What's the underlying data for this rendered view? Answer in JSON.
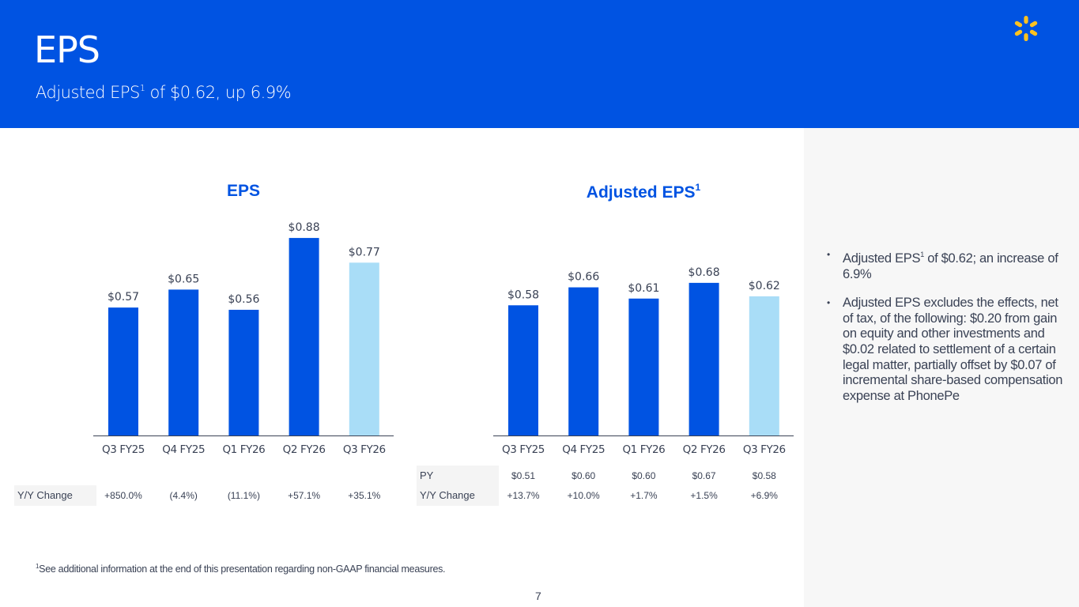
{
  "header": {
    "title": "EPS",
    "subtitle_pre": "Adjusted EPS",
    "subtitle_sup": "1",
    "subtitle_post": " of $0.62, up 6.9%",
    "logo_icon": "spark-icon",
    "brand_color": "#0053e2",
    "logo_color": "#ffc220"
  },
  "colors": {
    "bar": "#0053e2",
    "bar_highlight": "#a9ddf7",
    "axis": "#3a4255"
  },
  "chart_data": [
    {
      "type": "bar",
      "title": "EPS",
      "title_sup": "",
      "categories": [
        "Q3 FY25",
        "Q4 FY25",
        "Q1 FY26",
        "Q2 FY26",
        "Q3 FY26"
      ],
      "values": [
        0.57,
        0.65,
        0.56,
        0.88,
        0.77
      ],
      "data_labels": [
        "$0.57",
        "$0.65",
        "$0.56",
        "$0.88",
        "$0.77"
      ],
      "highlight_index": 4,
      "xlabel": "",
      "ylabel": "",
      "ylim": [
        0,
        0.95
      ],
      "grid": false,
      "table": {
        "rows": [
          {
            "label": "Y/Y Change",
            "values": [
              "+850.0%",
              "(4.4%)",
              "(11.1%)",
              "+57.1%",
              "+35.1%"
            ]
          }
        ]
      }
    },
    {
      "type": "bar",
      "title": "Adjusted EPS",
      "title_sup": "1",
      "categories": [
        "Q3 FY25",
        "Q4 FY25",
        "Q1 FY26",
        "Q2 FY26",
        "Q3 FY26"
      ],
      "values": [
        0.58,
        0.66,
        0.61,
        0.68,
        0.62
      ],
      "data_labels": [
        "$0.58",
        "$0.66",
        "$0.61",
        "$0.68",
        "$0.62"
      ],
      "highlight_index": 4,
      "xlabel": "",
      "ylabel": "",
      "ylim": [
        0,
        0.95
      ],
      "grid": false,
      "table": {
        "rows": [
          {
            "label": "PY",
            "values": [
              "$0.51",
              "$0.60",
              "$0.60",
              "$0.67",
              "$0.58"
            ]
          },
          {
            "label": "Y/Y Change",
            "values": [
              "+13.7%",
              "+10.0%",
              "+1.7%",
              "+1.5%",
              "+6.9%"
            ]
          }
        ]
      }
    }
  ],
  "sidebar": {
    "bullets": [
      {
        "pre": "Adjusted EPS",
        "sup": "1",
        "post": " of $0.62; an increase of 6.9%"
      },
      {
        "pre": "Adjusted EPS excludes the effects, net of tax, of the following: $0.20 from gain on equity and other investments and $0.02 related to settlement of a certain legal matter, partially offset by $0.07 of incremental share-based compensation expense at PhonePe",
        "sup": "",
        "post": ""
      }
    ],
    "bullet_glyph": "•"
  },
  "footnote": {
    "sup": "1",
    "text": "See additional information at the end of this presentation regarding non-GAAP financial measures."
  },
  "page_number": "7"
}
